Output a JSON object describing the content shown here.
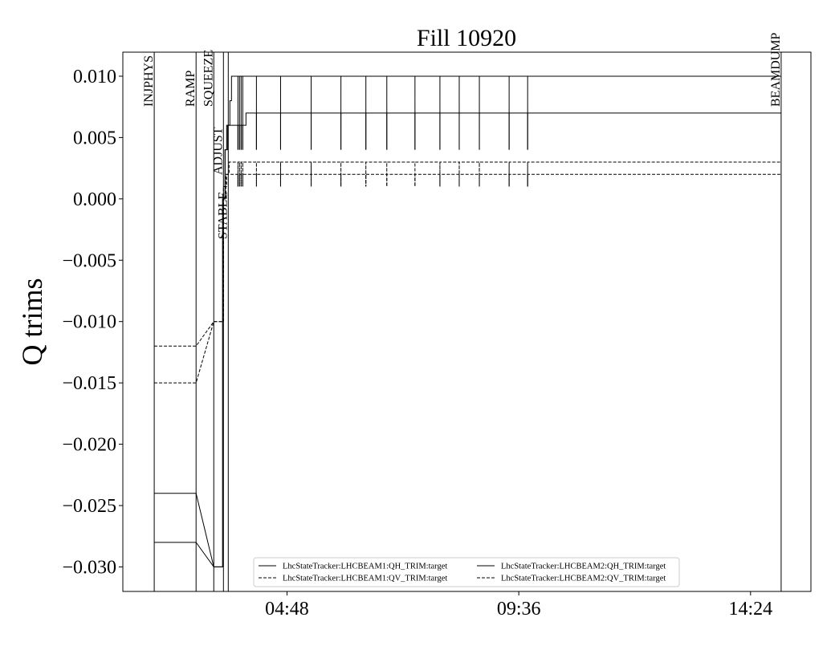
{
  "chart_data": {
    "type": "line",
    "title": "Fill 10920",
    "xlabel": "",
    "ylabel": "Q trims",
    "xlim": [
      "01:24",
      "15:39"
    ],
    "ylim": [
      -0.032,
      0.01196
    ],
    "x_ticks": [
      "04:48",
      "09:36",
      "14:24"
    ],
    "y_ticks": [
      0.01,
      0.005,
      0.0,
      -0.005,
      -0.01,
      -0.015,
      -0.02,
      -0.025,
      -0.03
    ],
    "y_tick_labels": [
      "0.010",
      "0.005",
      "0.000",
      "−0.005",
      "−0.010",
      "−0.015",
      "−0.020",
      "−0.025",
      "−0.030"
    ],
    "grid": false,
    "legend_placement": "lower-center",
    "states": [
      {
        "label": "INJPHYS",
        "time": "02:03"
      },
      {
        "label": "RAMP",
        "time": "02:55"
      },
      {
        "label": "SQUEEZE",
        "time": "03:17"
      },
      {
        "label": "ADJUST",
        "time": "03:29"
      },
      {
        "label": "STABLE",
        "time": "03:35"
      },
      {
        "label": "BEAMDUMP",
        "time": "15:02"
      }
    ],
    "spike_times": [
      "03:47",
      "03:49",
      "03:51",
      "03:53",
      "04:10",
      "04:40",
      "05:18",
      "05:55",
      "06:26",
      "06:52",
      "07:27",
      "07:58",
      "08:22",
      "08:47",
      "09:24",
      "09:47"
    ],
    "series": [
      {
        "name": "LhcStateTracker:LHCBEAM1:QH_TRIM:target",
        "style": "solid",
        "spike_low": 0.004,
        "points": [
          [
            "02:03",
            -0.024
          ],
          [
            "02:55",
            -0.024
          ],
          [
            "03:17",
            -0.03
          ],
          [
            "03:28",
            -0.03
          ],
          [
            "03:28",
            0.0
          ],
          [
            "03:31",
            0.0
          ],
          [
            "03:31",
            0.004
          ],
          [
            "03:34",
            0.004
          ],
          [
            "03:34",
            0.006
          ],
          [
            "03:37",
            0.006
          ],
          [
            "03:37",
            0.008
          ],
          [
            "03:39",
            0.008
          ],
          [
            "03:39",
            0.01
          ],
          [
            "15:02",
            0.01
          ]
        ]
      },
      {
        "name": "LhcStateTracker:LHCBEAM1:QV_TRIM:target",
        "style": "dashed",
        "spike_low": 0.001,
        "points": [
          [
            "02:03",
            -0.012
          ],
          [
            "02:55",
            -0.012
          ],
          [
            "03:17",
            -0.01
          ],
          [
            "03:29",
            -0.01
          ],
          [
            "03:29",
            0.0
          ],
          [
            "03:32",
            0.0
          ],
          [
            "03:32",
            0.002
          ],
          [
            "03:36",
            0.002
          ],
          [
            "03:36",
            0.003
          ],
          [
            "15:02",
            0.003
          ]
        ]
      },
      {
        "name": "LhcStateTracker:LHCBEAM2:QH_TRIM:target",
        "style": "solid",
        "spike_low": 0.004,
        "points": [
          [
            "02:03",
            -0.028
          ],
          [
            "02:55",
            -0.028
          ],
          [
            "03:17",
            -0.03
          ],
          [
            "03:28",
            -0.03
          ],
          [
            "03:28",
            0.0
          ],
          [
            "03:31",
            0.0
          ],
          [
            "03:31",
            0.004
          ],
          [
            "03:33",
            0.004
          ],
          [
            "03:33",
            0.006
          ],
          [
            "03:57",
            0.006
          ],
          [
            "03:57",
            0.007
          ],
          [
            "15:02",
            0.007
          ]
        ]
      },
      {
        "name": "LhcStateTracker:LHCBEAM2:QV_TRIM:target",
        "style": "dashed",
        "spike_low": 0.001,
        "points": [
          [
            "02:03",
            -0.015
          ],
          [
            "02:55",
            -0.015
          ],
          [
            "03:17",
            -0.01
          ],
          [
            "03:29",
            -0.01
          ],
          [
            "03:29",
            0.001
          ],
          [
            "03:33",
            0.001
          ],
          [
            "03:33",
            0.002
          ],
          [
            "15:02",
            0.002
          ]
        ]
      }
    ]
  }
}
